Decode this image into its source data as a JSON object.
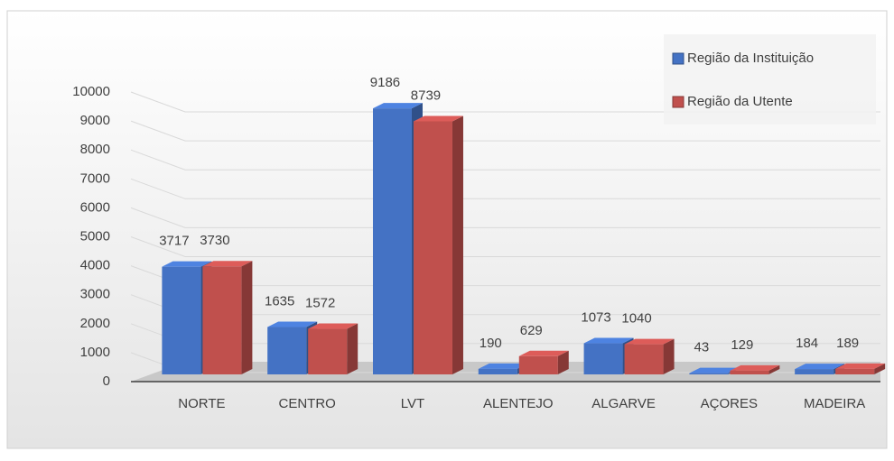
{
  "chart_data": {
    "type": "bar3d",
    "categories": [
      "NORTE",
      "CENTRO",
      "LVT",
      "ALENTEJO",
      "ALGARVE",
      "AÇORES",
      "MADEIRA"
    ],
    "series": [
      {
        "name": "Região da Instituição",
        "color": "#4472c4",
        "values": [
          3717,
          1635,
          9186,
          190,
          1073,
          43,
          184
        ]
      },
      {
        "name": "Região da Utente",
        "color": "#c0504d",
        "values": [
          3730,
          1572,
          8739,
          629,
          1040,
          129,
          189
        ]
      }
    ],
    "ylim": [
      0,
      10000
    ],
    "yticks": [
      0,
      1000,
      2000,
      3000,
      4000,
      5000,
      6000,
      7000,
      8000,
      9000,
      10000
    ],
    "grid": true,
    "legend": "upper right"
  }
}
